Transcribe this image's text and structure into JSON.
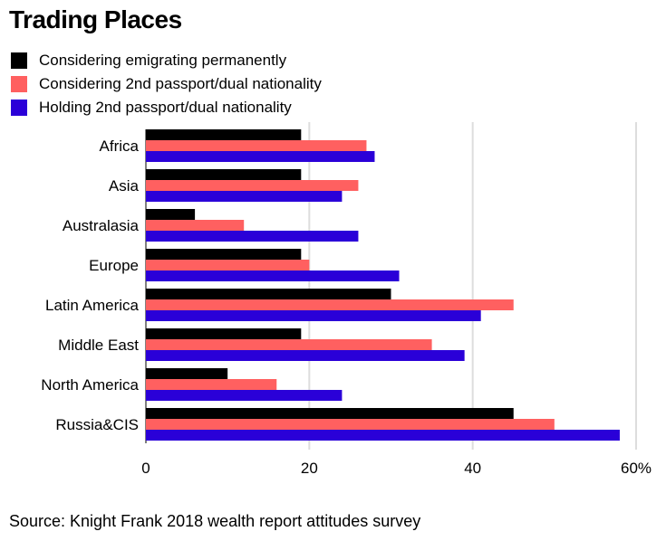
{
  "title": "Trading Places",
  "source": "Source: Knight Frank 2018 wealth report attitudes survey",
  "legend": [
    {
      "label": "Considering emigrating permanently",
      "color": "#000000"
    },
    {
      "label": "Considering 2nd passport/dual nationality",
      "color": "#ff6060"
    },
    {
      "label": "Holding 2nd passport/dual nationality",
      "color": "#2a00d8"
    }
  ],
  "chart_data": {
    "type": "bar",
    "orientation": "horizontal",
    "categories": [
      "Africa",
      "Asia",
      "Australasia",
      "Europe",
      "Latin America",
      "Middle East",
      "North America",
      "Russia&CIS"
    ],
    "series": [
      {
        "name": "Considering emigrating permanently",
        "color": "#000000",
        "values": [
          19,
          19,
          6,
          19,
          30,
          19,
          10,
          45
        ]
      },
      {
        "name": "Considering 2nd passport/dual nationality",
        "color": "#ff6060",
        "values": [
          27,
          26,
          12,
          20,
          45,
          35,
          16,
          50
        ]
      },
      {
        "name": "Holding 2nd passport/dual nationality",
        "color": "#2a00d8",
        "values": [
          28,
          24,
          26,
          31,
          41,
          39,
          24,
          58
        ]
      }
    ],
    "xlim": [
      0,
      60
    ],
    "xticks": [
      0,
      20,
      40,
      60
    ],
    "xtick_labels": [
      "0",
      "20",
      "40",
      "60%"
    ],
    "grid": true
  }
}
